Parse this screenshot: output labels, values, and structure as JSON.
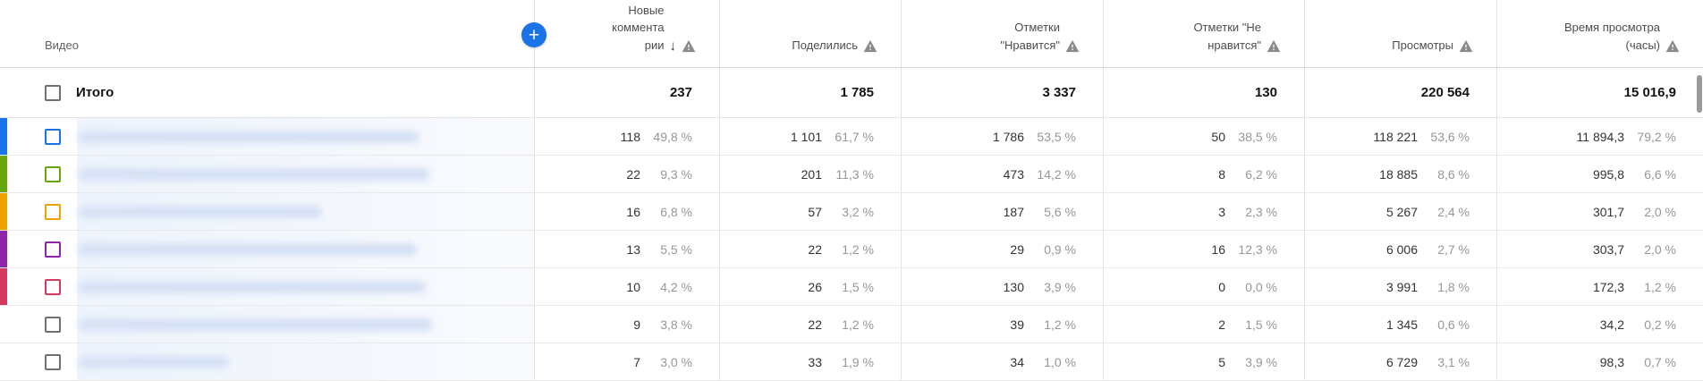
{
  "header": {
    "video_label": "Видео",
    "add_metric_button_label": "+",
    "sort_arrow": "↓",
    "columns": [
      {
        "id": "comments",
        "label": "Новые\nкоммента\nрии",
        "sorted": true,
        "warning": true
      },
      {
        "id": "shares",
        "label": "Поделились",
        "sorted": false,
        "warning": true
      },
      {
        "id": "likes",
        "label": "Отметки\n\"Нравится\"",
        "sorted": false,
        "warning": true
      },
      {
        "id": "dislikes",
        "label": "Отметки \"Не\nнравится\"",
        "sorted": false,
        "warning": true
      },
      {
        "id": "views",
        "label": "Просмотры",
        "sorted": false,
        "warning": true
      },
      {
        "id": "watch_time",
        "label": "Время просмотра\n(часы)",
        "sorted": false,
        "warning": true
      }
    ]
  },
  "totals": {
    "label": "Итого",
    "comments": "237",
    "shares": "1 785",
    "likes": "3 337",
    "dislikes": "130",
    "views": "220 564",
    "watch_time": "15 016,9"
  },
  "rows": [
    {
      "color": "#1a73e8",
      "blur_width": 380,
      "comments": {
        "value": "118",
        "pct": "49,8 %"
      },
      "shares": {
        "value": "1 101",
        "pct": "61,7 %"
      },
      "likes": {
        "value": "1 786",
        "pct": "53,5 %"
      },
      "dislikes": {
        "value": "50",
        "pct": "38,5 %"
      },
      "views": {
        "value": "118 221",
        "pct": "53,6 %"
      },
      "watch_time": {
        "value": "11 894,3",
        "pct": "79,2 %"
      }
    },
    {
      "color": "#67a60d",
      "blur_width": 392,
      "comments": {
        "value": "22",
        "pct": "9,3 %"
      },
      "shares": {
        "value": "201",
        "pct": "11,3 %"
      },
      "likes": {
        "value": "473",
        "pct": "14,2 %"
      },
      "dislikes": {
        "value": "8",
        "pct": "6,2 %"
      },
      "views": {
        "value": "18 885",
        "pct": "8,6 %"
      },
      "watch_time": {
        "value": "995,8",
        "pct": "6,6 %"
      }
    },
    {
      "color": "#efa100",
      "blur_width": 272,
      "comments": {
        "value": "16",
        "pct": "6,8 %"
      },
      "shares": {
        "value": "57",
        "pct": "3,2 %"
      },
      "likes": {
        "value": "187",
        "pct": "5,6 %"
      },
      "dislikes": {
        "value": "3",
        "pct": "2,3 %"
      },
      "views": {
        "value": "5 267",
        "pct": "2,4 %"
      },
      "watch_time": {
        "value": "301,7",
        "pct": "2,0 %"
      }
    },
    {
      "color": "#8e24aa",
      "blur_width": 378,
      "comments": {
        "value": "13",
        "pct": "5,5 %"
      },
      "shares": {
        "value": "22",
        "pct": "1,2 %"
      },
      "likes": {
        "value": "29",
        "pct": "0,9 %"
      },
      "dislikes": {
        "value": "16",
        "pct": "12,3 %"
      },
      "views": {
        "value": "6 006",
        "pct": "2,7 %"
      },
      "watch_time": {
        "value": "303,7",
        "pct": "2,0 %"
      }
    },
    {
      "color": "#d4395f",
      "blur_width": 388,
      "comments": {
        "value": "10",
        "pct": "4,2 %"
      },
      "shares": {
        "value": "26",
        "pct": "1,5 %"
      },
      "likes": {
        "value": "130",
        "pct": "3,9 %"
      },
      "dislikes": {
        "value": "0",
        "pct": "0,0 %"
      },
      "views": {
        "value": "3 991",
        "pct": "1,8 %"
      },
      "watch_time": {
        "value": "172,3",
        "pct": "1,2 %"
      }
    },
    {
      "color": null,
      "blur_width": 395,
      "comments": {
        "value": "9",
        "pct": "3,8 %"
      },
      "shares": {
        "value": "22",
        "pct": "1,2 %"
      },
      "likes": {
        "value": "39",
        "pct": "1,2 %"
      },
      "dislikes": {
        "value": "2",
        "pct": "1,5 %"
      },
      "views": {
        "value": "1 345",
        "pct": "0,6 %"
      },
      "watch_time": {
        "value": "34,2",
        "pct": "0,2 %"
      }
    },
    {
      "color": null,
      "blur_width": 168,
      "comments": {
        "value": "7",
        "pct": "3,0 %"
      },
      "shares": {
        "value": "33",
        "pct": "1,9 %"
      },
      "likes": {
        "value": "34",
        "pct": "1,0 %"
      },
      "dislikes": {
        "value": "5",
        "pct": "3,9 %"
      },
      "views": {
        "value": "6 729",
        "pct": "3,1 %"
      },
      "watch_time": {
        "value": "98,3",
        "pct": "0,7 %"
      }
    }
  ],
  "colors": {
    "accent_blue": "#1a73e8",
    "checkbox_gray": "#707070",
    "warning_icon_gray": "#8a8a8a"
  }
}
